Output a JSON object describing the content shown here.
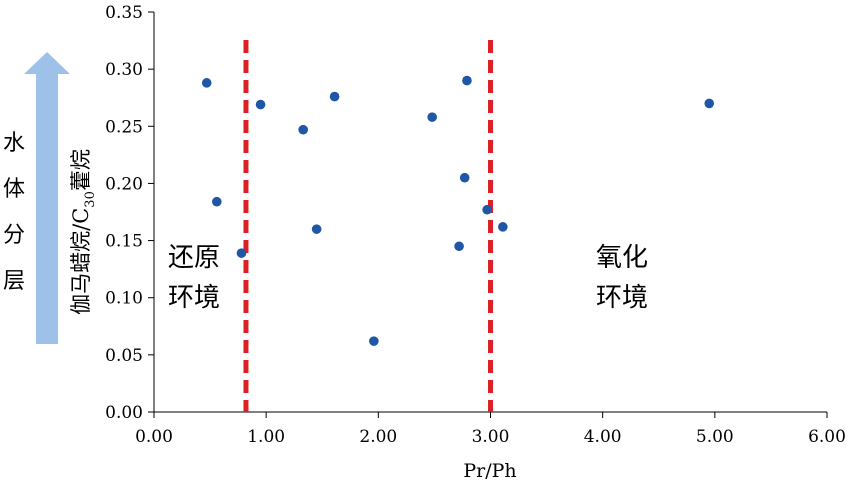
{
  "chart_data": {
    "type": "scatter",
    "xlabel": "Pr/Ph",
    "ylabel": {
      "main": "伽马蜡烷/C",
      "sub": "30",
      "suffix": "藿烷"
    },
    "xlim": [
      0,
      6
    ],
    "ylim": [
      0,
      0.35
    ],
    "x_ticks": [
      "0.00",
      "1.00",
      "2.00",
      "3.00",
      "4.00",
      "5.00",
      "6.00"
    ],
    "y_ticks": [
      "0.00",
      "0.05",
      "0.10",
      "0.15",
      "0.20",
      "0.25",
      "0.30",
      "0.35"
    ],
    "grid": false,
    "marker_color": "#1f57a6",
    "points": [
      {
        "x": 0.47,
        "y": 0.288
      },
      {
        "x": 0.56,
        "y": 0.184
      },
      {
        "x": 0.78,
        "y": 0.139
      },
      {
        "x": 0.95,
        "y": 0.269
      },
      {
        "x": 1.33,
        "y": 0.247
      },
      {
        "x": 1.45,
        "y": 0.16
      },
      {
        "x": 1.61,
        "y": 0.276
      },
      {
        "x": 1.96,
        "y": 0.062
      },
      {
        "x": 2.48,
        "y": 0.258
      },
      {
        "x": 2.72,
        "y": 0.145
      },
      {
        "x": 2.77,
        "y": 0.205
      },
      {
        "x": 2.79,
        "y": 0.29
      },
      {
        "x": 2.97,
        "y": 0.177
      },
      {
        "x": 3.11,
        "y": 0.162
      },
      {
        "x": 4.95,
        "y": 0.27
      }
    ],
    "threshold_lines": [
      {
        "x": 0.82,
        "color": "#dd1f26"
      },
      {
        "x": 3.0,
        "color": "#dd1f26"
      }
    ],
    "annotations": {
      "left_region": [
        "还原",
        "环境"
      ],
      "right_region": [
        "氧化",
        "环境"
      ]
    },
    "side_indicator": {
      "text": [
        "水",
        "体",
        "分",
        "层"
      ],
      "arrow_color": "#9dc1e8"
    }
  }
}
